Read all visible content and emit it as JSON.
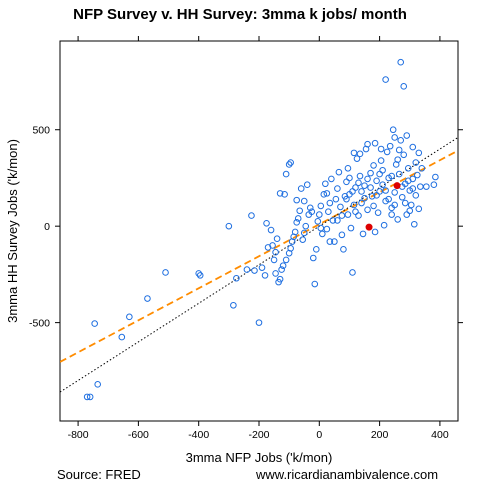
{
  "chart_data": {
    "type": "scatter",
    "title": "NFP Survey v. HH Survey: 3mma k jobs/ month",
    "xlabel": "3mma NFP Jobs ('k/mon)",
    "ylabel": "3mma HH Survey Jobs ('k/mon)",
    "xlim": [
      -860,
      460
    ],
    "ylim": [
      -1010,
      960
    ],
    "x_ticks": [
      -800,
      -600,
      -400,
      -200,
      0,
      200,
      400
    ],
    "y_ticks": [
      -500,
      0,
      500
    ],
    "grid": false,
    "legend": "none",
    "colors": {
      "points": "#1f6fe0",
      "highlight": "#dd0000",
      "fit_line": "#ff8c00",
      "identity_line": "#000000"
    },
    "lines": [
      {
        "kind": "regression",
        "style": "dashed",
        "color": "#ff8c00",
        "slope": 0.83,
        "intercept": 10
      },
      {
        "kind": "identity",
        "style": "dotted",
        "color": "#000000",
        "slope": 1.0,
        "intercept": 0
      }
    ],
    "highlight_points": [
      {
        "x": 165,
        "y": -5
      },
      {
        "x": 258,
        "y": 210
      }
    ],
    "points": [
      {
        "x": -770,
        "y": -885
      },
      {
        "x": -760,
        "y": -885
      },
      {
        "x": -735,
        "y": -820
      },
      {
        "x": -745,
        "y": -505
      },
      {
        "x": -655,
        "y": -575
      },
      {
        "x": -630,
        "y": -470
      },
      {
        "x": -570,
        "y": -375
      },
      {
        "x": -510,
        "y": -240
      },
      {
        "x": -400,
        "y": -245
      },
      {
        "x": -395,
        "y": -255
      },
      {
        "x": -300,
        "y": 0
      },
      {
        "x": -225,
        "y": 55
      },
      {
        "x": -200,
        "y": -500
      },
      {
        "x": -175,
        "y": 15
      },
      {
        "x": -160,
        "y": -20
      },
      {
        "x": -150,
        "y": -175
      },
      {
        "x": -145,
        "y": -135
      },
      {
        "x": -140,
        "y": -65
      },
      {
        "x": -285,
        "y": -410
      },
      {
        "x": -275,
        "y": -270
      },
      {
        "x": -240,
        "y": -225
      },
      {
        "x": -215,
        "y": -230
      },
      {
        "x": -190,
        "y": -215
      },
      {
        "x": -180,
        "y": -255
      },
      {
        "x": -170,
        "y": -110
      },
      {
        "x": -155,
        "y": -100
      },
      {
        "x": -145,
        "y": -245
      },
      {
        "x": -135,
        "y": -290
      },
      {
        "x": -130,
        "y": -275
      },
      {
        "x": -125,
        "y": -225
      },
      {
        "x": -120,
        "y": -205
      },
      {
        "x": -110,
        "y": -175
      },
      {
        "x": -100,
        "y": -140
      },
      {
        "x": -95,
        "y": -115
      },
      {
        "x": -90,
        "y": -80
      },
      {
        "x": -85,
        "y": -55
      },
      {
        "x": -80,
        "y": -30
      },
      {
        "x": -75,
        "y": 20
      },
      {
        "x": -70,
        "y": 40
      },
      {
        "x": -65,
        "y": 80
      },
      {
        "x": -55,
        "y": -70
      },
      {
        "x": -50,
        "y": -35
      },
      {
        "x": -45,
        "y": 0
      },
      {
        "x": -35,
        "y": 60
      },
      {
        "x": -30,
        "y": 95
      },
      {
        "x": -20,
        "y": -165
      },
      {
        "x": -15,
        "y": -300
      },
      {
        "x": -10,
        "y": -120
      },
      {
        "x": -5,
        "y": 25
      },
      {
        "x": 0,
        "y": 60
      },
      {
        "x": 5,
        "y": 105
      },
      {
        "x": 10,
        "y": -40
      },
      {
        "x": 15,
        "y": 165
      },
      {
        "x": 20,
        "y": 220
      },
      {
        "x": 25,
        "y": -15
      },
      {
        "x": 30,
        "y": 75
      },
      {
        "x": 35,
        "y": 120
      },
      {
        "x": -130,
        "y": 170
      },
      {
        "x": -115,
        "y": 165
      },
      {
        "x": -110,
        "y": 270
      },
      {
        "x": -100,
        "y": 320
      },
      {
        "x": -95,
        "y": 330
      },
      {
        "x": -75,
        "y": 135
      },
      {
        "x": -60,
        "y": 195
      },
      {
        "x": -50,
        "y": 130
      },
      {
        "x": 40,
        "y": 245
      },
      {
        "x": 45,
        "y": 30
      },
      {
        "x": 50,
        "y": -80
      },
      {
        "x": 55,
        "y": 140
      },
      {
        "x": 60,
        "y": 195
      },
      {
        "x": 65,
        "y": 280
      },
      {
        "x": 70,
        "y": 100
      },
      {
        "x": 75,
        "y": 55
      },
      {
        "x": 80,
        "y": -120
      },
      {
        "x": 85,
        "y": 155
      },
      {
        "x": 90,
        "y": 230
      },
      {
        "x": 95,
        "y": 300
      },
      {
        "x": 100,
        "y": 165
      },
      {
        "x": 105,
        "y": -10
      },
      {
        "x": 110,
        "y": -240
      },
      {
        "x": 115,
        "y": 110
      },
      {
        "x": 120,
        "y": 200
      },
      {
        "x": 125,
        "y": 350
      },
      {
        "x": 130,
        "y": 55
      },
      {
        "x": 135,
        "y": 260
      },
      {
        "x": 140,
        "y": 120
      },
      {
        "x": 145,
        "y": -40
      },
      {
        "x": 150,
        "y": 210
      },
      {
        "x": 155,
        "y": 400
      },
      {
        "x": 160,
        "y": 85
      },
      {
        "x": 170,
        "y": 275
      },
      {
        "x": 175,
        "y": 155
      },
      {
        "x": 180,
        "y": 315
      },
      {
        "x": 185,
        "y": -30
      },
      {
        "x": 190,
        "y": 235
      },
      {
        "x": 195,
        "y": 70
      },
      {
        "x": 200,
        "y": 180
      },
      {
        "x": 205,
        "y": 340
      },
      {
        "x": 210,
        "y": 290
      },
      {
        "x": 215,
        "y": 5
      },
      {
        "x": 220,
        "y": 130
      },
      {
        "x": 225,
        "y": 385
      },
      {
        "x": 230,
        "y": 250
      },
      {
        "x": 235,
        "y": 415
      },
      {
        "x": 240,
        "y": 95
      },
      {
        "x": 245,
        "y": 500
      },
      {
        "x": 250,
        "y": 175
      },
      {
        "x": 255,
        "y": 320
      },
      {
        "x": 260,
        "y": 35
      },
      {
        "x": 265,
        "y": 270
      },
      {
        "x": 270,
        "y": 445
      },
      {
        "x": 275,
        "y": 150
      },
      {
        "x": 280,
        "y": 370
      },
      {
        "x": 285,
        "y": 220
      },
      {
        "x": 290,
        "y": 60
      },
      {
        "x": 295,
        "y": 300
      },
      {
        "x": 300,
        "y": 185
      },
      {
        "x": 305,
        "y": 110
      },
      {
        "x": 310,
        "y": 245
      },
      {
        "x": 315,
        "y": 10
      },
      {
        "x": 320,
        "y": 160
      },
      {
        "x": 325,
        "y": 265
      },
      {
        "x": 330,
        "y": 90
      },
      {
        "x": 335,
        "y": 205
      },
      {
        "x": 340,
        "y": 300
      },
      {
        "x": 355,
        "y": 205
      },
      {
        "x": 380,
        "y": 215
      },
      {
        "x": 385,
        "y": 255
      },
      {
        "x": 270,
        "y": 850
      },
      {
        "x": 220,
        "y": 760
      },
      {
        "x": 280,
        "y": 725
      },
      {
        "x": 90,
        "y": 140
      },
      {
        "x": 100,
        "y": 250
      },
      {
        "x": 110,
        "y": 180
      },
      {
        "x": 130,
        "y": 225
      },
      {
        "x": 150,
        "y": 145
      },
      {
        "x": 170,
        "y": 200
      },
      {
        "x": 190,
        "y": 160
      },
      {
        "x": 210,
        "y": 215
      },
      {
        "x": 230,
        "y": 140
      },
      {
        "x": 240,
        "y": 260
      },
      {
        "x": 250,
        "y": 110
      },
      {
        "x": 260,
        "y": 345
      },
      {
        "x": 275,
        "y": 205
      },
      {
        "x": 285,
        "y": 120
      },
      {
        "x": 295,
        "y": 235
      },
      {
        "x": 300,
        "y": 80
      },
      {
        "x": 310,
        "y": 195
      },
      {
        "x": 320,
        "y": 330
      },
      {
        "x": 120,
        "y": 75
      },
      {
        "x": 140,
        "y": 180
      },
      {
        "x": 160,
        "y": 245
      },
      {
        "x": 180,
        "y": 105
      },
      {
        "x": 200,
        "y": 270
      },
      {
        "x": 220,
        "y": 185
      },
      {
        "x": 240,
        "y": 60
      },
      {
        "x": 60,
        "y": 30
      },
      {
        "x": 75,
        "y": -45
      },
      {
        "x": 95,
        "y": 60
      },
      {
        "x": 35,
        "y": -80
      },
      {
        "x": 25,
        "y": 170
      },
      {
        "x": -25,
        "y": 75
      },
      {
        "x": -40,
        "y": 215
      },
      {
        "x": 5,
        "y": -10
      },
      {
        "x": 135,
        "y": 375
      },
      {
        "x": 160,
        "y": 425
      },
      {
        "x": 205,
        "y": 400
      },
      {
        "x": 185,
        "y": 430
      },
      {
        "x": 250,
        "y": 460
      },
      {
        "x": 290,
        "y": 470
      },
      {
        "x": 310,
        "y": 410
      },
      {
        "x": 330,
        "y": 380
      },
      {
        "x": 265,
        "y": 395
      },
      {
        "x": 115,
        "y": 380
      }
    ],
    "footer_left": "Source: FRED",
    "footer_right": "www.ricardianambivalence.com"
  }
}
